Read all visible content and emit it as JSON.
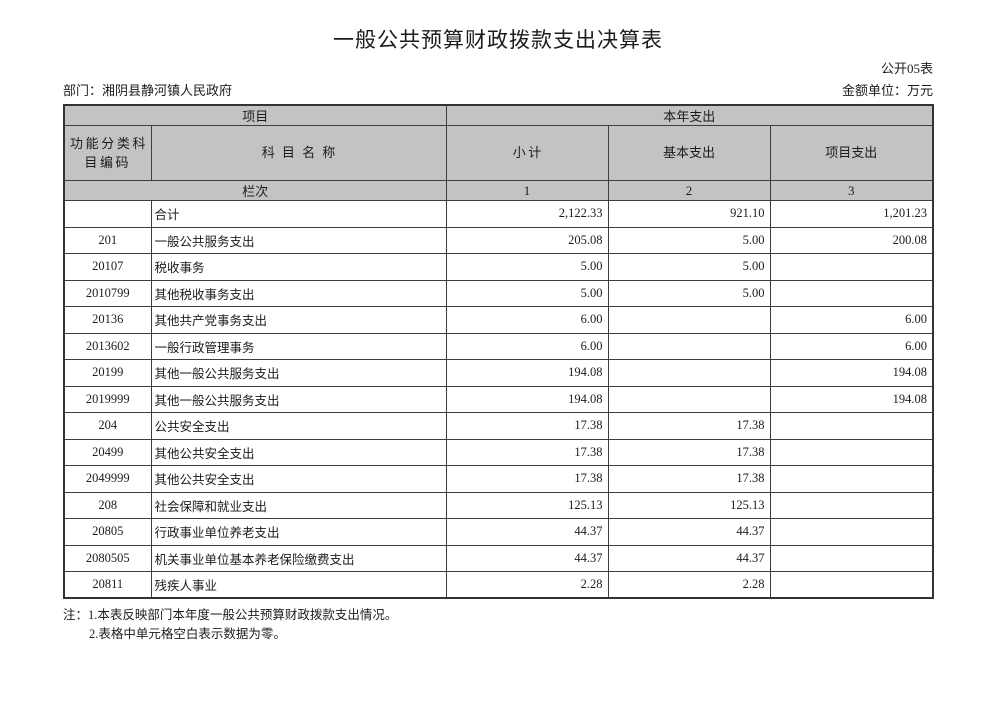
{
  "page": {
    "title": "一般公共预算财政拨款支出决算表",
    "sheet_code": "公开05表",
    "department": "部门：湘阴县静河镇人民政府",
    "unit": "金额单位：万元"
  },
  "table": {
    "header": {
      "project_group": "项目",
      "year_group": "本年支出",
      "col_code": "功能分类科目编码",
      "col_name": "科目名称",
      "col_subtotal": "小计",
      "col_basic": "基本支出",
      "col_project": "项目支出",
      "index_label": "栏次",
      "index_cols": [
        "1",
        "2",
        "3"
      ]
    },
    "rows": [
      {
        "code": "",
        "name": "合计",
        "subtotal": "2,122.33",
        "basic": "921.10",
        "project": "1,201.23"
      },
      {
        "code": "201",
        "name": "一般公共服务支出",
        "subtotal": "205.08",
        "basic": "5.00",
        "project": "200.08"
      },
      {
        "code": "20107",
        "name": "税收事务",
        "subtotal": "5.00",
        "basic": "5.00",
        "project": ""
      },
      {
        "code": "2010799",
        "name": "其他税收事务支出",
        "subtotal": "5.00",
        "basic": "5.00",
        "project": ""
      },
      {
        "code": "20136",
        "name": "其他共产党事务支出",
        "subtotal": "6.00",
        "basic": "",
        "project": "6.00"
      },
      {
        "code": "2013602",
        "name": "一般行政管理事务",
        "subtotal": "6.00",
        "basic": "",
        "project": "6.00"
      },
      {
        "code": "20199",
        "name": "其他一般公共服务支出",
        "subtotal": "194.08",
        "basic": "",
        "project": "194.08"
      },
      {
        "code": "2019999",
        "name": "其他一般公共服务支出",
        "subtotal": "194.08",
        "basic": "",
        "project": "194.08"
      },
      {
        "code": "204",
        "name": "公共安全支出",
        "subtotal": "17.38",
        "basic": "17.38",
        "project": ""
      },
      {
        "code": "20499",
        "name": "其他公共安全支出",
        "subtotal": "17.38",
        "basic": "17.38",
        "project": ""
      },
      {
        "code": "2049999",
        "name": "其他公共安全支出",
        "subtotal": "17.38",
        "basic": "17.38",
        "project": ""
      },
      {
        "code": "208",
        "name": "社会保障和就业支出",
        "subtotal": "125.13",
        "basic": "125.13",
        "project": ""
      },
      {
        "code": "20805",
        "name": "行政事业单位养老支出",
        "subtotal": "44.37",
        "basic": "44.37",
        "project": ""
      },
      {
        "code": "2080505",
        "name": "机关事业单位基本养老保险缴费支出",
        "subtotal": "44.37",
        "basic": "44.37",
        "project": ""
      },
      {
        "code": "20811",
        "name": "残疾人事业",
        "subtotal": "2.28",
        "basic": "2.28",
        "project": ""
      }
    ]
  },
  "notes": {
    "line1": "注：1.本表反映部门本年度一般公共预算财政拨款支出情况。",
    "line2": "2.表格中单元格空白表示数据为零。"
  }
}
